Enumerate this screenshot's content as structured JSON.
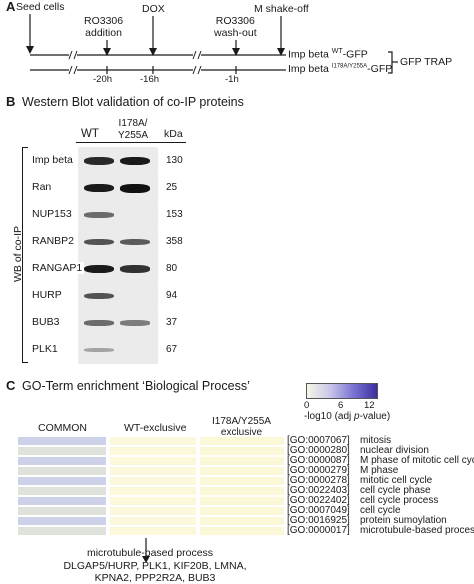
{
  "panelA": {
    "label": "A",
    "events": [
      {
        "label": "Seed cells"
      },
      {
        "label": "RO3306\naddition"
      },
      {
        "label": "DOX"
      },
      {
        "label": "RO3306\nwash-out"
      },
      {
        "label": "M shake-off"
      }
    ],
    "ticks": [
      "-20h",
      "-16h",
      "-1h"
    ],
    "constructs": [
      {
        "prefix": "Imp beta ",
        "sup": "WT",
        "suffix": "-GFP"
      },
      {
        "prefix": "Imp beta ",
        "sup": "I178A/Y255A",
        "suffix": "-GFP"
      }
    ],
    "trap_label": "GFP TRAP"
  },
  "panelB": {
    "label": "B",
    "title": "Western Blot validation of co-IP proteins",
    "col_wt": "WT",
    "col_mut": "I178A/\nY255A",
    "col_kda": "kDa",
    "side_label": "WB of co-IP",
    "rows": [
      {
        "protein": "Imp beta",
        "kda": "130",
        "wt": 0.85,
        "mut": 0.95
      },
      {
        "protein": "Ran",
        "kda": "25",
        "wt": 0.95,
        "mut": 1.0
      },
      {
        "protein": "NUP153",
        "kda": "153",
        "wt": 0.45,
        "mut": 0.0
      },
      {
        "protein": "RANBP2",
        "kda": "358",
        "wt": 0.6,
        "mut": 0.55
      },
      {
        "protein": "RANGAP1",
        "kda": "80",
        "wt": 0.95,
        "mut": 0.8
      },
      {
        "protein": "HURP",
        "kda": "94",
        "wt": 0.6,
        "mut": 0.0
      },
      {
        "protein": "BUB3",
        "kda": "37",
        "wt": 0.45,
        "mut": 0.35
      },
      {
        "protein": "PLK1",
        "kda": "67",
        "wt": 0.1,
        "mut": 0.0
      }
    ]
  },
  "panelC": {
    "label": "C",
    "title": "GO-Term enrichment ‘Biological Process’",
    "legend": {
      "ticks": [
        "0",
        "6",
        "12"
      ],
      "axis_label": "-log10 (adj ",
      "axis_label_italic": "p",
      "axis_label_end": "-value)",
      "color_low": "#f6f6e6",
      "color_high": "#3b2fa0"
    },
    "columns": [
      "COMMON",
      "WT-exclusive",
      "I178A/Y255A\nexclusive"
    ],
    "terms": [
      {
        "id": "[GO:0007067]",
        "name": "mitosis",
        "common": 0.25,
        "wt": 0.05,
        "mut": 0.02
      },
      {
        "id": "[GO:0000280]",
        "name": "nuclear division",
        "common": 0.25,
        "wt": 0.05,
        "mut": 0.02
      },
      {
        "id": "[GO:0000087]",
        "name": "M phase of mitotic cell cycle",
        "common": 0.22,
        "wt": 0.05,
        "mut": 0.02
      },
      {
        "id": "[GO:0000279]",
        "name": "M phase",
        "common": 0.22,
        "wt": 0.05,
        "mut": 0.02
      },
      {
        "id": "[GO:0000278]",
        "name": "mitotic cell cycle",
        "common": 0.18,
        "wt": 0.05,
        "mut": 0.02
      },
      {
        "id": "[GO:0022403]",
        "name": "cell cycle phase",
        "common": 0.18,
        "wt": 0.05,
        "mut": 0.02
      },
      {
        "id": "[GO:0022402]",
        "name": "cell cycle process",
        "common": 0.16,
        "wt": 0.05,
        "mut": 0.02
      },
      {
        "id": "[GO:0007049]",
        "name": "cell cycle",
        "common": 0.14,
        "wt": 0.05,
        "mut": 0.02
      },
      {
        "id": "[GO:0016925]",
        "name": "protein sumoylation",
        "common": 0.12,
        "wt": 0.05,
        "mut": 0.02
      },
      {
        "id": "[GO:0000017]",
        "name": "microtubule-based process",
        "common": 0.08,
        "wt": 0.05,
        "mut": 0.02
      }
    ],
    "callout_title": "microtubule-based process",
    "callout_lines": [
      "DLGAP5/HURP, PLK1, KIF20B, LMNA,",
      "KPNA2, PPP2R2A, BUB3"
    ]
  }
}
